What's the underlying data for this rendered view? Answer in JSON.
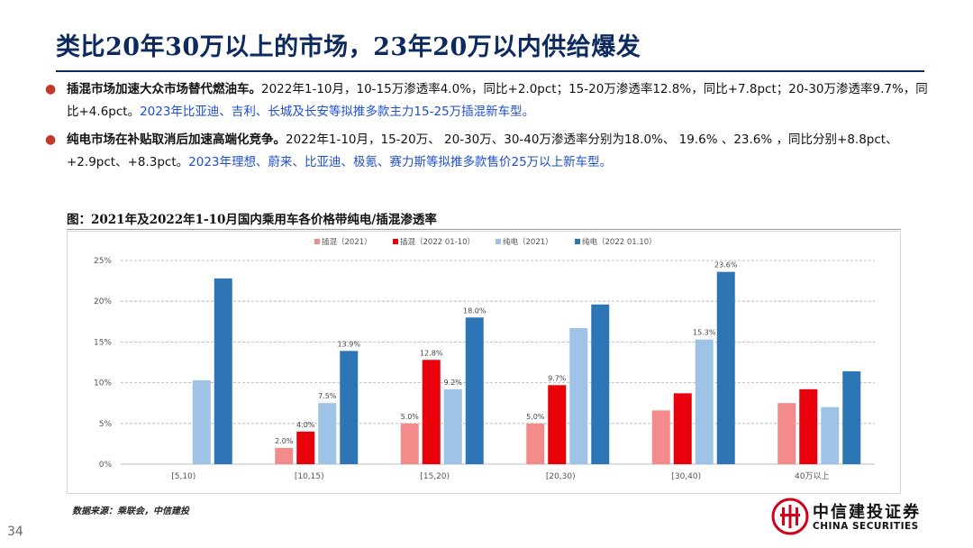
{
  "title": "类比20年30万以上的市场，23年20万以内供给爆发",
  "bullets": [
    {
      "lead": "插混市场加速大众市场替代燃油车。",
      "text": "2022年1-10月，10-15万渗透率4.0%，同比+2.0pct；15-20万渗透率12.8%，同比+7.8pct；20-30万渗透率9.7%，同比+4.6pct。",
      "highlight": "2023年比亚迪、吉利、长城及长安等拟推多款主力15-25万插混新车型。"
    },
    {
      "lead": "纯电市场在补贴取消后加速高端化竞争。",
      "text": "2022年1-10月，15-20万、 20-30万、30-40万渗透率分别为18.0%、 19.6% 、23.6% ，同比分别+8.8pct、+2.9pct、+8.3pct。",
      "highlight": "2023年理想、蔚来、比亚迪、极氪、赛力斯等拟推多款售价25万以上新车型。"
    }
  ],
  "figure_title": "图：2021年及2022年1-10月国内乘用车各价格带纯电/插混渗透率",
  "source": "数据来源：乘联会，中信建投",
  "page_number": "34",
  "logo": {
    "cn": "中信建投证券",
    "en": "CHINA SECURITIES"
  },
  "colors": {
    "title": "#0d2a5e",
    "bullet_dot": "#c0392b",
    "highlight": "#1f4fd1",
    "logo_red": "#d0021b"
  },
  "chart_data": {
    "type": "bar",
    "categories": [
      "[5,10)",
      "[10,15)",
      "[15,20)",
      "[20,30)",
      "[30,40)",
      "40万以上"
    ],
    "series": [
      {
        "name": "插混（2021）",
        "color": "#f38b8b",
        "values": [
          0,
          2.0,
          5.0,
          5.0,
          6.6,
          7.5
        ],
        "labels": [
          "",
          "2.0%",
          "5.0%",
          "5.0%",
          "",
          ""
        ]
      },
      {
        "name": "插混（2022 01-10）",
        "color": "#e8000b",
        "values": [
          0,
          4.0,
          12.8,
          9.7,
          8.7,
          9.2
        ],
        "labels": [
          "",
          "4.0%",
          "12.8%",
          "9.7%",
          "",
          ""
        ]
      },
      {
        "name": "纯电（2021）",
        "color": "#9ec3e6",
        "values": [
          10.3,
          7.5,
          9.2,
          16.7,
          15.3,
          7.0
        ],
        "labels": [
          "",
          "7.5%",
          "9.2%",
          "",
          "15.3%",
          ""
        ]
      },
      {
        "name": "纯电（2022 01.10）",
        "color": "#2e75b6",
        "values": [
          22.8,
          13.9,
          18.0,
          19.6,
          23.6,
          11.4
        ],
        "labels": [
          "",
          "13.9%",
          "18.0%",
          "",
          "23.6%",
          ""
        ]
      }
    ],
    "yticks": [
      "0%",
      "5%",
      "10%",
      "15%",
      "20%",
      "25%"
    ],
    "ylim": [
      0,
      25
    ],
    "grid": true,
    "legend_position": "top-center"
  }
}
